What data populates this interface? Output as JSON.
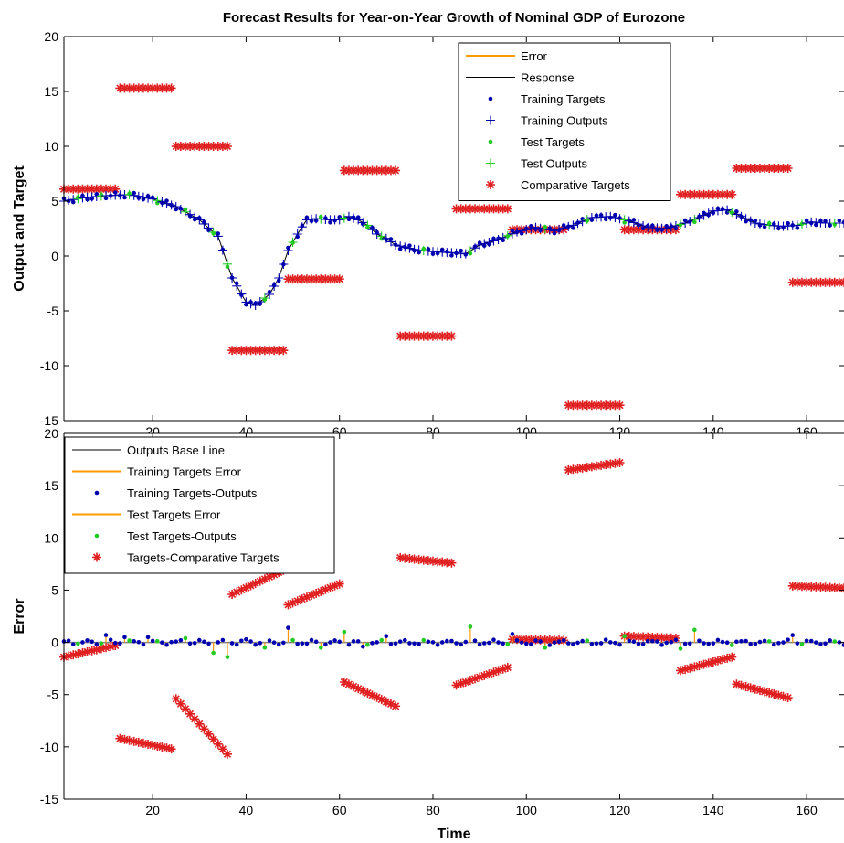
{
  "colors": {
    "error": "#FF9900",
    "response": "#000000",
    "training": "#0000B0",
    "test": "#22CC22",
    "comparative": "#E02020",
    "baseline": "#808080"
  },
  "chart_data": [
    {
      "type": "scatter",
      "title": "Forecast Results for Year-on-Year Growth of Nominal GDP of Eurozone",
      "xlabel": "",
      "ylabel": "Output and Target",
      "xlim": [
        1,
        168
      ],
      "ylim": [
        -15,
        20
      ],
      "xticks": [
        "20",
        "40",
        "60",
        "80",
        "100",
        "120",
        "140",
        "160"
      ],
      "yticks": [
        "-15",
        "-10",
        "-5",
        "0",
        "5",
        "10",
        "15",
        "20"
      ],
      "grid": false,
      "legend_position": "top-right",
      "legend": [
        "Error",
        "Response",
        "Training Targets",
        "Training Outputs",
        "Test Targets",
        "Test Outputs",
        "Comparative Targets"
      ],
      "response_curve": {
        "x": [
          1,
          5,
          10,
          15,
          20,
          25,
          30,
          34,
          37,
          40,
          42,
          45,
          47,
          49,
          51,
          53,
          55,
          58,
          60,
          62,
          64,
          66,
          68,
          70,
          72,
          76,
          80,
          84,
          87,
          90,
          94,
          98,
          102,
          106,
          110,
          114,
          118,
          122,
          126,
          130,
          134,
          137,
          140,
          143,
          146,
          149,
          152,
          155,
          158,
          161,
          164,
          168
        ],
        "y": [
          5.0,
          5.3,
          5.5,
          5.6,
          5.2,
          4.5,
          3.3,
          1.8,
          -2.0,
          -4.2,
          -4.5,
          -3.5,
          -2.0,
          0.5,
          2.0,
          3.3,
          3.4,
          3.3,
          3.3,
          3.6,
          3.3,
          2.8,
          2.0,
          1.6,
          1.0,
          0.6,
          0.4,
          0.3,
          0.2,
          1.0,
          1.5,
          2.2,
          2.6,
          2.3,
          2.8,
          3.5,
          3.6,
          3.2,
          2.6,
          2.5,
          3.0,
          3.5,
          4.1,
          4.2,
          3.6,
          3.0,
          2.8,
          2.7,
          2.8,
          3.1,
          3.0,
          3.0
        ]
      },
      "test_indices": [
        4,
        9,
        15,
        21,
        27,
        33,
        36,
        44,
        50,
        56,
        61,
        66,
        69,
        78,
        88,
        96,
        104,
        113,
        121,
        133,
        136,
        144,
        152,
        159,
        166
      ],
      "comparative_segments": [
        {
          "x_start": 1,
          "x_end": 12,
          "y": 6.1
        },
        {
          "x_start": 13,
          "x_end": 24,
          "y": 15.3
        },
        {
          "x_start": 25,
          "x_end": 36,
          "y": 10.0
        },
        {
          "x_start": 37,
          "x_end": 48,
          "y": -8.6
        },
        {
          "x_start": 49,
          "x_end": 60,
          "y": -2.1
        },
        {
          "x_start": 61,
          "x_end": 72,
          "y": 7.8
        },
        {
          "x_start": 73,
          "x_end": 84,
          "y": -7.3
        },
        {
          "x_start": 85,
          "x_end": 96,
          "y": 4.3
        },
        {
          "x_start": 97,
          "x_end": 108,
          "y": 2.4
        },
        {
          "x_start": 109,
          "x_end": 120,
          "y": -13.6
        },
        {
          "x_start": 121,
          "x_end": 132,
          "y": 2.4
        },
        {
          "x_start": 133,
          "x_end": 144,
          "y": 5.6
        },
        {
          "x_start": 145,
          "x_end": 156,
          "y": 8.0
        },
        {
          "x_start": 157,
          "x_end": 168,
          "y": -2.4
        }
      ]
    },
    {
      "type": "scatter",
      "title": "",
      "xlabel": "Time",
      "ylabel": "Error",
      "xlim": [
        1,
        168
      ],
      "ylim": [
        -15,
        20
      ],
      "xticks": [
        "20",
        "40",
        "60",
        "80",
        "100",
        "120",
        "140",
        "160"
      ],
      "yticks": [
        "-15",
        "-10",
        "-5",
        "0",
        "5",
        "10",
        "15",
        "20"
      ],
      "grid": false,
      "legend_position": "top-left",
      "legend": [
        "Outputs Base Line",
        "Training Targets Error",
        "Training Targets-Outputs",
        "Test Targets Error",
        "Test Targets-Outputs",
        "Targets-Comparative Targets"
      ],
      "error_spikes": [
        {
          "x": 10,
          "y": 0.7
        },
        {
          "x": 14,
          "y": 0.5
        },
        {
          "x": 19,
          "y": 0.5
        },
        {
          "x": 27,
          "y": 0.4
        },
        {
          "x": 33,
          "y": -1.0
        },
        {
          "x": 36,
          "y": -1.4
        },
        {
          "x": 40,
          "y": 0.3
        },
        {
          "x": 44,
          "y": -0.5
        },
        {
          "x": 49,
          "y": 1.4
        },
        {
          "x": 56,
          "y": -0.5
        },
        {
          "x": 61,
          "y": 1.0
        },
        {
          "x": 65,
          "y": -0.4
        },
        {
          "x": 70,
          "y": 0.6
        },
        {
          "x": 88,
          "y": 1.5
        },
        {
          "x": 97,
          "y": 0.8
        },
        {
          "x": 104,
          "y": -0.5
        },
        {
          "x": 121,
          "y": 0.6
        },
        {
          "x": 133,
          "y": -0.6
        },
        {
          "x": 136,
          "y": 1.2
        },
        {
          "x": 157,
          "y": 0.7
        }
      ],
      "comparative_error_segments": [
        {
          "x_start": 1,
          "y_start": -1.4,
          "y_end": -0.3
        },
        {
          "x_start": 13,
          "y_start": -9.2,
          "y_end": -10.2
        },
        {
          "x_start": 25,
          "y_start": -5.4,
          "y_end": -10.7
        },
        {
          "x_start": 37,
          "y_start": 4.6,
          "y_end": 6.9
        },
        {
          "x_start": 49,
          "y_start": 3.6,
          "y_end": 5.6
        },
        {
          "x_start": 61,
          "y_start": -3.8,
          "y_end": -6.1
        },
        {
          "x_start": 73,
          "y_start": 8.1,
          "y_end": 7.6
        },
        {
          "x_start": 85,
          "y_start": -4.1,
          "y_end": -2.4
        },
        {
          "x_start": 97,
          "y_start": 0.3,
          "y_end": 0.2
        },
        {
          "x_start": 109,
          "y_start": 16.5,
          "y_end": 17.2
        },
        {
          "x_start": 121,
          "y_start": 0.6,
          "y_end": 0.4
        },
        {
          "x_start": 133,
          "y_start": -2.7,
          "y_end": -1.4
        },
        {
          "x_start": 145,
          "y_start": -4.0,
          "y_end": -5.3
        },
        {
          "x_start": 157,
          "y_start": 5.4,
          "y_end": 5.2
        }
      ]
    }
  ]
}
